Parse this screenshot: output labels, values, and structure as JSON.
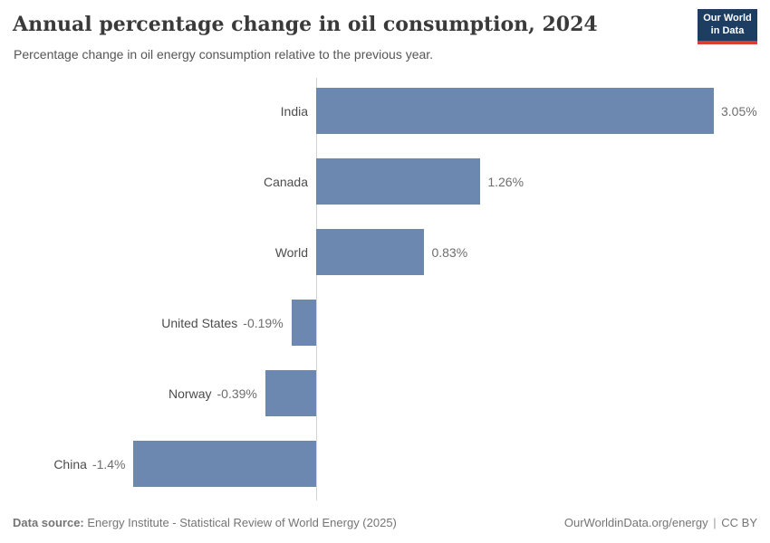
{
  "header": {
    "title": "Annual percentage change in oil consumption, 2024",
    "subtitle": "Percentage change in oil energy consumption relative to the previous year.",
    "logo": {
      "line1": "Our World",
      "line2": "in Data"
    }
  },
  "chart_data": {
    "type": "bar",
    "orientation": "horizontal",
    "title": "Annual percentage change in oil consumption, 2024",
    "categories": [
      "India",
      "Canada",
      "World",
      "United States",
      "Norway",
      "China"
    ],
    "values": [
      3.05,
      1.26,
      0.83,
      -0.19,
      -0.39,
      -1.4
    ],
    "value_labels": [
      "3.05%",
      "1.26%",
      "0.83%",
      "-0.19%",
      "-0.39%",
      "-1.4%"
    ],
    "xlabel": "",
    "ylabel": "",
    "xlim": [
      -1.4,
      3.05
    ],
    "grid": false,
    "legend": false,
    "bar_color": "#6c87b0",
    "axis_color": "#d4d4d4",
    "label_color": "#4d4d4d",
    "value_color": "#6e6e6e"
  },
  "footer": {
    "source_label": "Data source:",
    "source_text": " Energy Institute - Statistical Review of World Energy (2025)",
    "link": "OurWorldinData.org/energy",
    "separator": "|",
    "license": "CC BY"
  }
}
